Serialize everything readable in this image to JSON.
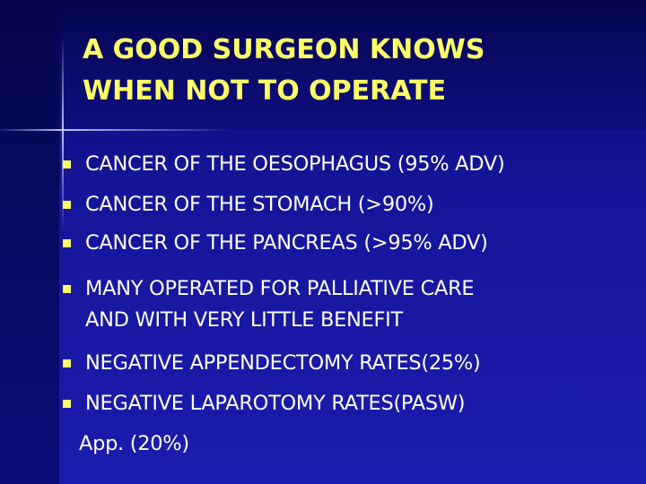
{
  "title": {
    "lines": [
      "A GOOD SURGEON KNOWS",
      "WHEN NOT TO OPERATE"
    ]
  },
  "bullets": [
    {
      "lines": [
        "CANCER OF THE OESOPHAGUS (95% ADV)"
      ]
    },
    {
      "lines": [
        "CANCER OF THE STOMACH (>90%)"
      ]
    },
    {
      "lines": [
        "CANCER OF THE PANCREAS (>95% ADV)"
      ]
    },
    {
      "lines": [
        "MANY OPERATED FOR PALLIATIVE CARE",
        "AND WITH VERY LITTLE BENEFIT"
      ]
    },
    {
      "lines": [
        "NEGATIVE APPENDECTOMY RATES(25%)"
      ]
    },
    {
      "lines": [
        "NEGATIVE LAPAROTOMY RATES(PASW)"
      ]
    }
  ],
  "continuation": "App. (20%)"
}
